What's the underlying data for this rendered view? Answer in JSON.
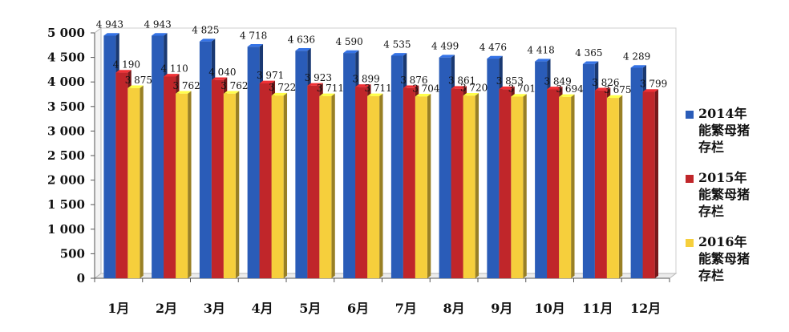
{
  "chart_data": {
    "type": "bar",
    "categories": [
      "1月",
      "2月",
      "3月",
      "4月",
      "5月",
      "6月",
      "7月",
      "8月",
      "9月",
      "10月",
      "11月",
      "12月"
    ],
    "series": [
      {
        "name": "2014年能繁母猪存栏",
        "color": "#2a5cb8",
        "values": [
          4943,
          4943,
          4825,
          4718,
          4636,
          4590,
          4535,
          4499,
          4476,
          4418,
          4365,
          4289
        ],
        "labels": [
          "4 943",
          "4 943",
          "4 825",
          "4 718",
          "4 636",
          "4 590",
          "4 535",
          "4 499",
          "4 476",
          "4 418",
          "4 365",
          "4 289"
        ]
      },
      {
        "name": "2015年能繁母猪存栏",
        "color": "#c0262a",
        "values": [
          4190,
          4110,
          4040,
          3971,
          3923,
          3899,
          3876,
          3861,
          3853,
          3849,
          3826,
          3799
        ],
        "labels": [
          "4 190",
          "4 110",
          "4 040",
          "3 971",
          "3 923",
          "3 899",
          "3 876",
          "3 861",
          "3 853",
          "3 849",
          "3 826",
          "3 799"
        ]
      },
      {
        "name": "2016年能繁母猪存栏",
        "color": "#f6cf3c",
        "values": [
          3875,
          3762,
          3762,
          3722,
          3711,
          3711,
          3704,
          3720,
          3701,
          3694,
          3675,
          null
        ],
        "labels": [
          "3 875",
          "3 762",
          "3 762",
          "3 722",
          "3 711",
          "3 711",
          "3 704",
          "3 720",
          "3 701",
          "3 694",
          "3 675",
          ""
        ]
      }
    ],
    "ylim": [
      0,
      5000
    ],
    "yticks": [
      0,
      500,
      1000,
      1500,
      2000,
      2500,
      3000,
      3500,
      4000,
      4500,
      5000
    ],
    "ytick_labels": [
      "0",
      "500",
      "1 000",
      "1 500",
      "2 000",
      "2 500",
      "3 000",
      "3 500",
      "4 000",
      "4 500",
      "5 000"
    ],
    "legend": {
      "position": "right",
      "entries": [
        {
          "lines": [
            "2014年",
            "能繁母猪",
            "存栏"
          ]
        },
        {
          "lines": [
            "2015年",
            "能繁母猪",
            "存栏"
          ]
        },
        {
          "lines": [
            "2016年",
            "能繁母猪",
            "存栏"
          ]
        }
      ]
    },
    "grid": false,
    "style": "3d-bar"
  }
}
